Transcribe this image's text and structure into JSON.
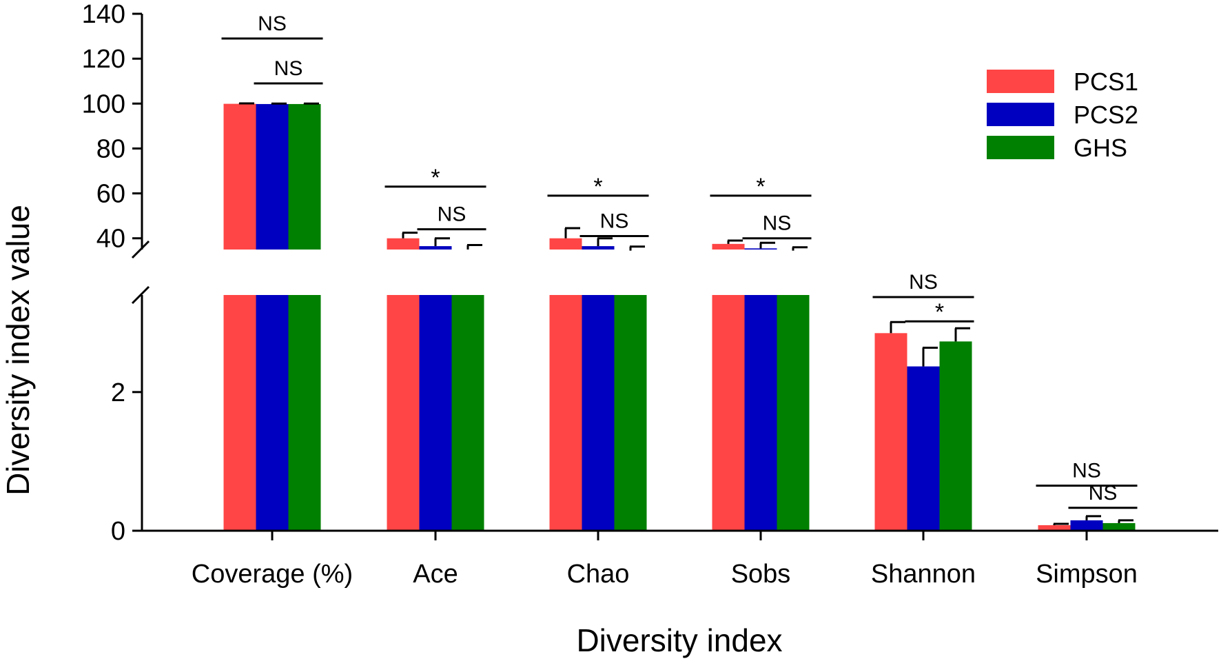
{
  "chart_data": {
    "type": "bar",
    "xlabel": "Diversity index",
    "ylabel": "Diversity index value",
    "categories": [
      "Coverage (%)",
      "Ace",
      "Chao",
      "Sobs",
      "Shannon",
      "Simpson"
    ],
    "series": [
      {
        "name": "PCS1",
        "color": "#FF4545",
        "values": [
          99.9,
          40.0,
          40.0,
          37.5,
          2.85,
          0.08
        ],
        "errors": [
          0.2,
          2.5,
          4.5,
          1.5,
          0.16,
          0.02
        ]
      },
      {
        "name": "PCS2",
        "color": "#0000C0",
        "values": [
          99.8,
          36.5,
          36.5,
          35.5,
          2.37,
          0.15
        ],
        "errors": [
          0.2,
          3.5,
          3.5,
          2.5,
          0.27,
          0.06
        ]
      },
      {
        "name": "GHS",
        "color": "#008000",
        "values": [
          99.8,
          35.0,
          34.5,
          34.5,
          2.73,
          0.11
        ],
        "errors": [
          0.2,
          2.0,
          1.8,
          1.5,
          0.19,
          0.04
        ]
      }
    ],
    "upper_axis": {
      "range": [
        35,
        140
      ],
      "ticks": [
        "40",
        "60",
        "80",
        "100",
        "120",
        "140"
      ]
    },
    "lower_axis": {
      "range": [
        0,
        3.4
      ],
      "ticks": [
        "0",
        "2"
      ]
    },
    "axis_break": true,
    "legend_position": "top-right",
    "significance": [
      {
        "category": 0,
        "from": 0,
        "to": 2,
        "label": "NS",
        "level": 129
      },
      {
        "category": 0,
        "from": 1,
        "to": 2,
        "label": "NS",
        "level": 109
      },
      {
        "category": 1,
        "from": 0,
        "to": 2,
        "label": "*",
        "level": 63
      },
      {
        "category": 1,
        "from": 1,
        "to": 2,
        "label": "NS",
        "level": 44
      },
      {
        "category": 2,
        "from": 0,
        "to": 2,
        "label": "*",
        "level": 59
      },
      {
        "category": 2,
        "from": 1,
        "to": 2,
        "label": "NS",
        "level": 41
      },
      {
        "category": 3,
        "from": 0,
        "to": 2,
        "label": "*",
        "level": 59
      },
      {
        "category": 3,
        "from": 1,
        "to": 2,
        "label": "NS",
        "level": 40
      },
      {
        "category": 4,
        "from": 0,
        "to": 2,
        "label": "NS",
        "level": 3.37
      },
      {
        "category": 4,
        "from": 1,
        "to": 2,
        "label": "*",
        "level": 3.02
      },
      {
        "category": 5,
        "from": 0,
        "to": 2,
        "label": "NS",
        "level": 0.65
      },
      {
        "category": 5,
        "from": 1,
        "to": 2,
        "label": "NS",
        "level": 0.33
      }
    ]
  }
}
